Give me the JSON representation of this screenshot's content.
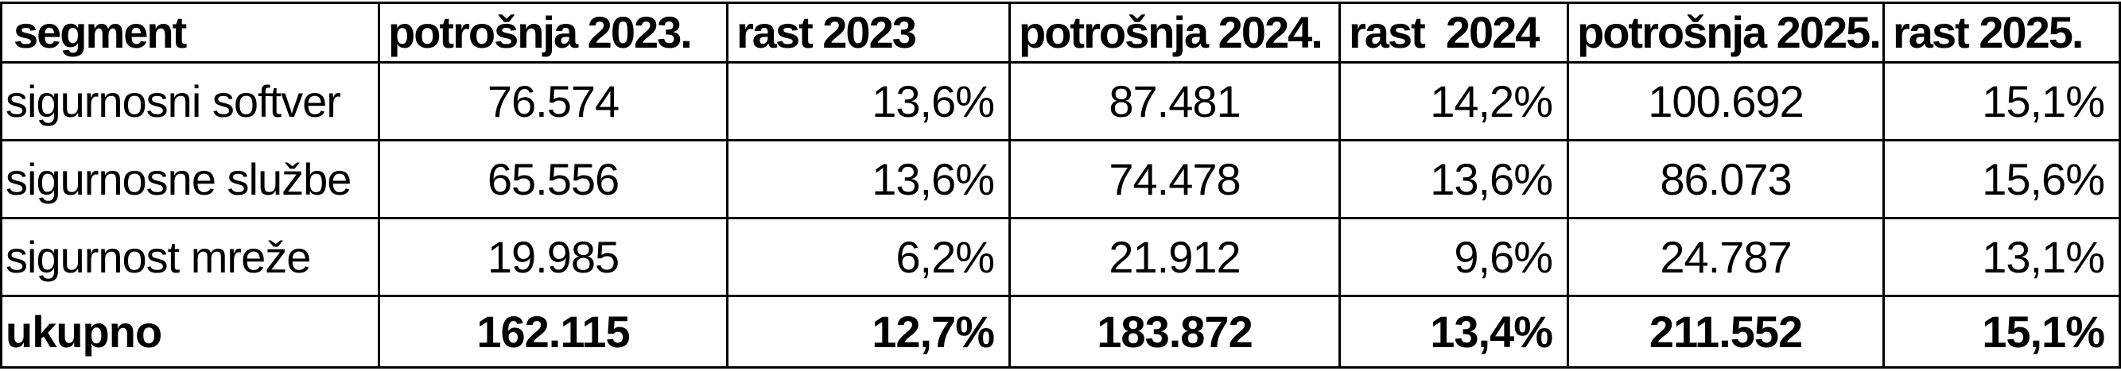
{
  "table": {
    "headers": [
      "segment",
      "potrošnja 2023.",
      "rast 2023",
      "potrošnja 2024.",
      "rast  2024",
      "potrošnja 2025.",
      "rast 2025."
    ],
    "rows": [
      {
        "segment": "sigurnosni softver",
        "spend_2023": "76.574",
        "growth_2023": "13,6%",
        "spend_2024": "87.481",
        "growth_2024": "14,2%",
        "spend_2025": "100.692",
        "growth_2025": "15,1%"
      },
      {
        "segment": "sigurnosne službe",
        "spend_2023": "65.556",
        "growth_2023": "13,6%",
        "spend_2024": "74.478",
        "growth_2024": "13,6%",
        "spend_2025": "86.073",
        "growth_2025": "15,6%"
      },
      {
        "segment": "sigurnost mreže",
        "spend_2023": "19.985",
        "growth_2023": "6,2%",
        "spend_2024": "21.912",
        "growth_2024": "9,6%",
        "spend_2025": "24.787",
        "growth_2025": "13,1%"
      },
      {
        "segment": "ukupno",
        "spend_2023": "162.115",
        "growth_2023": "12,7%",
        "spend_2024": "183.872",
        "growth_2024": "13,4%",
        "spend_2025": "211.552",
        "growth_2025": "15,1%"
      }
    ]
  }
}
